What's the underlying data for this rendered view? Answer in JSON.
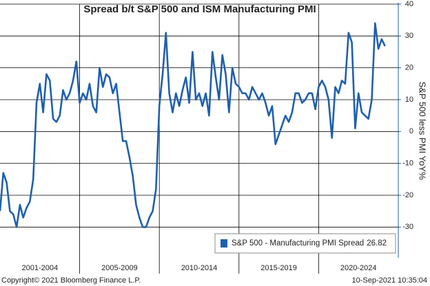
{
  "chart_data": {
    "type": "line",
    "title": "Spread b/t S&P 500 and ISM Manufacturing PMI",
    "y_axis_label": "S&P 500 less PMI YoY%",
    "groups": [
      {
        "label": "2001-2004",
        "values": [
          -25,
          -13,
          -16,
          -25,
          -26,
          -30,
          -23,
          -27,
          -24,
          -22,
          -15,
          9,
          15,
          6,
          18,
          16,
          4,
          3,
          5,
          13,
          10,
          12,
          16,
          22
        ]
      },
      {
        "label": "2005-2009",
        "values": [
          9,
          12,
          10,
          15,
          8,
          6,
          20,
          14,
          18,
          17,
          12,
          15,
          6,
          -3,
          -3,
          -8,
          -14,
          -23,
          -27,
          -30,
          -30,
          -27,
          -25,
          -18
        ]
      },
      {
        "label": "2010-2014",
        "values": [
          8,
          18,
          31,
          12,
          6,
          12,
          8,
          13,
          17,
          9,
          25,
          10,
          12,
          8,
          12,
          5,
          25,
          17,
          10,
          24,
          18,
          6,
          20,
          15
        ]
      },
      {
        "label": "2015-2019",
        "values": [
          14,
          12,
          12,
          10,
          14,
          12,
          10,
          12,
          9,
          5,
          8,
          -4,
          -1,
          2,
          5,
          3,
          6,
          12,
          12,
          9,
          10,
          12,
          12,
          7
        ]
      },
      {
        "label": "2020-2024",
        "values": [
          14,
          16,
          14,
          10,
          -2,
          14,
          12,
          16,
          15,
          31,
          28,
          1,
          12,
          6,
          5,
          4,
          10,
          34,
          26,
          29,
          26.82
        ]
      }
    ],
    "series_name": "S&P 500 - Manufacturing PMI Spread",
    "last_value": 26.82,
    "color": "#1f5fad",
    "ylim": [
      -39,
      40
    ],
    "yticks": [
      -30,
      -20,
      -10,
      0,
      10,
      20,
      30,
      40
    ],
    "grid": true,
    "legend": "lower right",
    "footer_left": "Copyright© 2021 Bloomberg Finance L.P.",
    "footer_right": "10-Sep-2021 10:35:04"
  }
}
